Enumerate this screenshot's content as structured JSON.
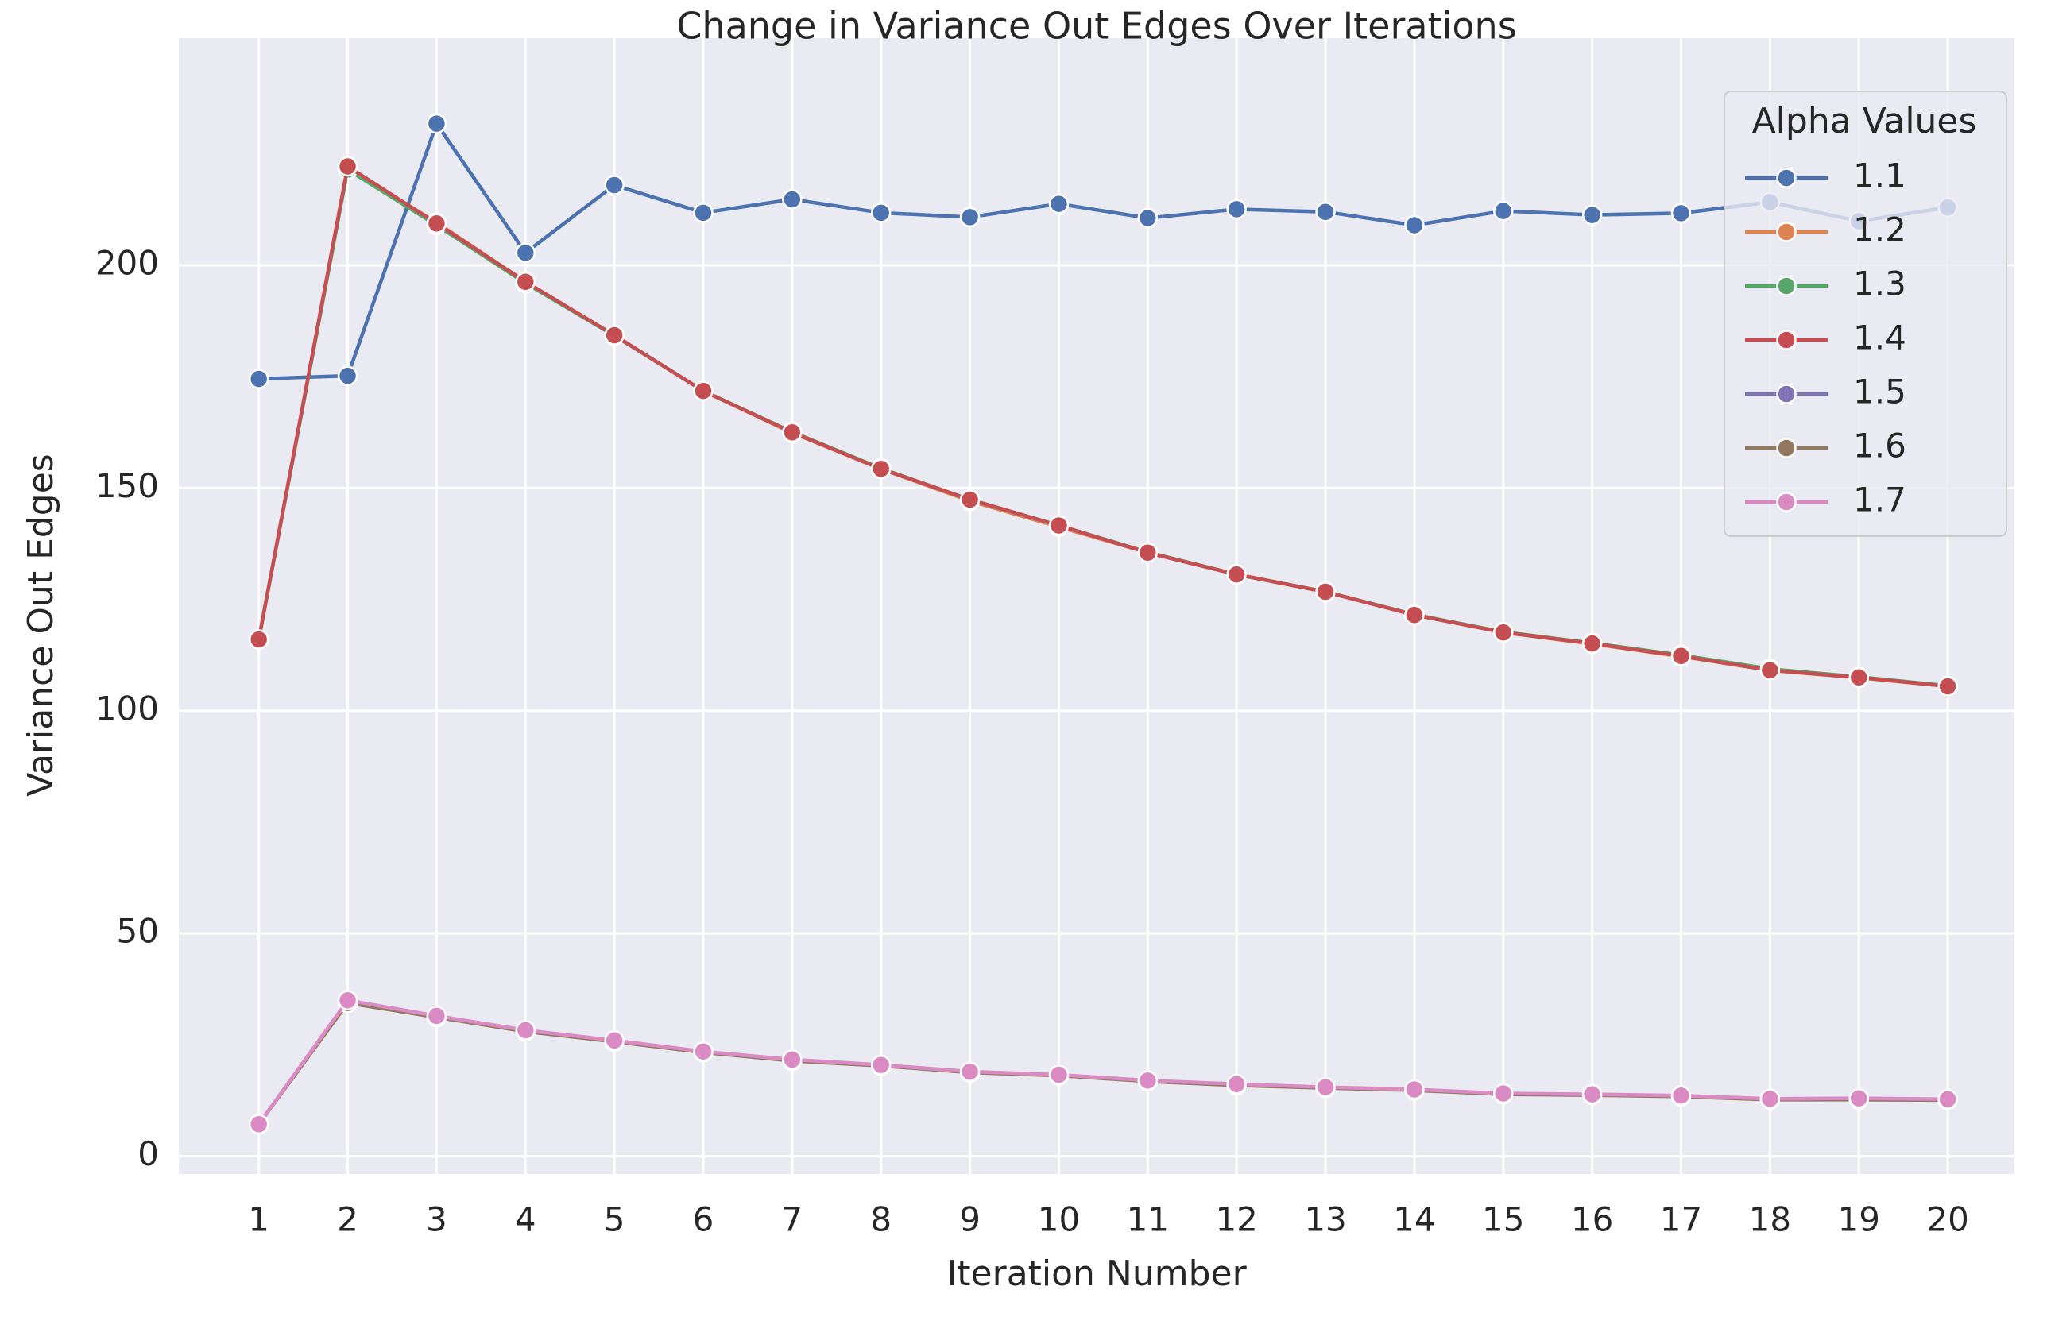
{
  "chart_data": {
    "type": "line",
    "title": "Change in Variance Out Edges Over Iterations",
    "xlabel": "Iteration Number",
    "ylabel": "Variance Out Edges",
    "x": [
      1,
      2,
      3,
      4,
      5,
      6,
      7,
      8,
      9,
      10,
      11,
      12,
      13,
      14,
      15,
      16,
      17,
      18,
      19,
      20
    ],
    "x_ticks": [
      "1",
      "2",
      "3",
      "4",
      "5",
      "6",
      "7",
      "8",
      "9",
      "10",
      "11",
      "12",
      "13",
      "14",
      "15",
      "16",
      "17",
      "18",
      "19",
      "20"
    ],
    "y_ticks": [
      "0",
      "50",
      "100",
      "150",
      "200"
    ],
    "ylim": [
      -4,
      251
    ],
    "xlim": [
      0.1,
      20.75
    ],
    "grid": true,
    "legend": {
      "title": "Alpha Values",
      "position": "top-right"
    },
    "series": [
      {
        "name": "1.1",
        "color": "#4c72b0",
        "values": [
          174.5,
          175.2,
          231.8,
          202.8,
          218.0,
          211.8,
          214.8,
          211.8,
          210.8,
          213.8,
          210.6,
          212.6,
          212.0,
          209.0,
          212.2,
          211.3,
          211.7,
          214.2,
          209.9,
          213.0
        ]
      },
      {
        "name": "1.2",
        "color": "#dd8452",
        "values": [
          116.0,
          221.8,
          209.6,
          196.3,
          184.2,
          171.8,
          162.4,
          154.3,
          147.1,
          141.3,
          135.5,
          130.6,
          126.7,
          121.6,
          117.6,
          115.0,
          112.2,
          109.1,
          107.4,
          105.5
        ]
      },
      {
        "name": "1.3",
        "color": "#55a868",
        "values": [
          116.0,
          221.5,
          209.0,
          196.0,
          184.2,
          171.8,
          162.6,
          154.4,
          147.4,
          141.6,
          135.6,
          130.6,
          126.7,
          121.6,
          117.7,
          115.2,
          112.5,
          109.4,
          107.6,
          105.6
        ]
      },
      {
        "name": "1.4",
        "color": "#c44e52",
        "values": [
          116.0,
          222.2,
          209.4,
          196.3,
          184.3,
          171.8,
          162.5,
          154.3,
          147.4,
          141.6,
          135.5,
          130.6,
          126.7,
          121.5,
          117.6,
          115.1,
          112.3,
          109.1,
          107.5,
          105.5
        ]
      },
      {
        "name": "1.5",
        "color": "#8172b3",
        "values": [
          7.2,
          34.8,
          31.4,
          28.2,
          25.9,
          23.4,
          21.6,
          20.4,
          18.9,
          18.2,
          16.9,
          16.0,
          15.4,
          14.9,
          14.0,
          13.8,
          13.5,
          12.8,
          12.8,
          12.7
        ]
      },
      {
        "name": "1.6",
        "color": "#937860",
        "values": [
          7.2,
          34.4,
          31.2,
          28.0,
          25.7,
          23.3,
          21.4,
          20.3,
          18.8,
          18.1,
          16.8,
          15.9,
          15.3,
          14.8,
          13.9,
          13.7,
          13.4,
          12.7,
          12.7,
          12.6
        ]
      },
      {
        "name": "1.7",
        "color": "#da8bc3",
        "values": [
          7.2,
          35.0,
          31.5,
          28.3,
          26.0,
          23.5,
          21.7,
          20.5,
          19.0,
          18.3,
          17.0,
          16.2,
          15.5,
          15.0,
          14.1,
          13.9,
          13.6,
          12.9,
          13.0,
          12.8
        ]
      }
    ]
  }
}
